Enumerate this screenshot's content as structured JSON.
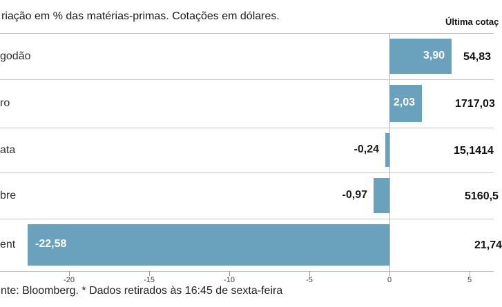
{
  "header": {
    "title": "riação em % das matérias-primas. Cotações em dólares.",
    "right_column_label": "Última cotaç"
  },
  "chart_data": {
    "type": "bar",
    "orientation": "horizontal",
    "unit": "%",
    "title": "riação em % das matérias-primas. Cotações em dólares.",
    "categories": [
      "godão",
      "ro",
      "ata",
      "bre",
      "ent"
    ],
    "values": [
      3.9,
      2.03,
      -0.24,
      -0.97,
      -22.58
    ],
    "value_labels": [
      "3,90",
      "2,03",
      "-0,24",
      "-0,97",
      "-22,58"
    ],
    "last_quote_column_label": "Última cotaç",
    "last_quotes": [
      "54,83",
      "1717,03",
      "15,1414",
      "5160,5",
      "21,74"
    ],
    "x_ticks": [
      -20,
      -15,
      -10,
      -5,
      0,
      5
    ],
    "x_tick_labels": [
      "-20",
      "-15",
      "-10",
      "-5",
      "0",
      "5"
    ],
    "xlim": [
      -24.3,
      6.5
    ],
    "grid": false,
    "zero_line": true,
    "legend": "none",
    "bar_color": "#6aa1bd",
    "bar_label_inside_color": "#ffffff",
    "bar_label_outside_color": "#1c1c1c"
  },
  "footer": {
    "source_note": "nte: Bloomberg.  * Dados retirados às 16:45 de sexta-feira"
  }
}
